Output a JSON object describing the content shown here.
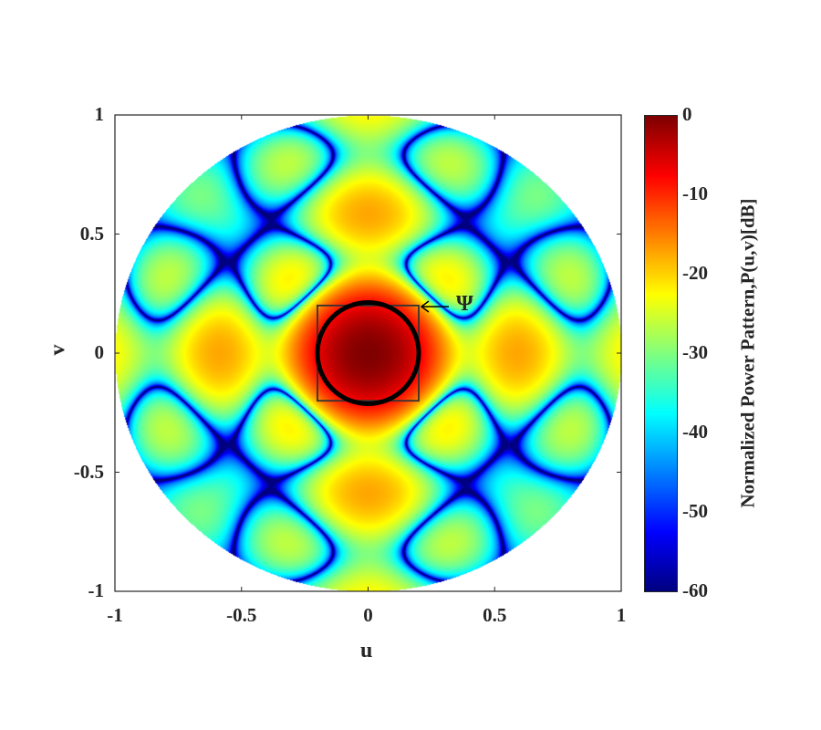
{
  "chart_data": {
    "type": "heatmap",
    "title": "",
    "xlabel": "u",
    "ylabel": "v",
    "xlim": [
      -1,
      1
    ],
    "ylim": [
      -1,
      1
    ],
    "xticks": [
      "-1",
      "-0.5",
      "0",
      "0.5",
      "1"
    ],
    "yticks": [
      "1",
      "0.5",
      "0",
      "-0.5",
      "-1"
    ],
    "xtick_values": [
      -1,
      -0.5,
      0,
      0.5,
      1
    ],
    "ytick_values": [
      1,
      0.5,
      0,
      -0.5,
      -1
    ],
    "colormap": "jet",
    "colorbar": {
      "label": "Normalized Power Pattern,P(u,v)[dB]",
      "range": [
        -60,
        0
      ],
      "ticks": [
        "0",
        "-10",
        "-20",
        "-30",
        "-40",
        "-50",
        "-60"
      ],
      "tick_values": [
        0,
        -10,
        -20,
        -30,
        -40,
        -50,
        -60
      ]
    },
    "region": "unit circle u^2+v^2<=1",
    "main_lobe_peak_db": 0,
    "annotation": {
      "text": "Ψ",
      "region_radius": 0.2,
      "square_half_width": 0.2
    }
  }
}
